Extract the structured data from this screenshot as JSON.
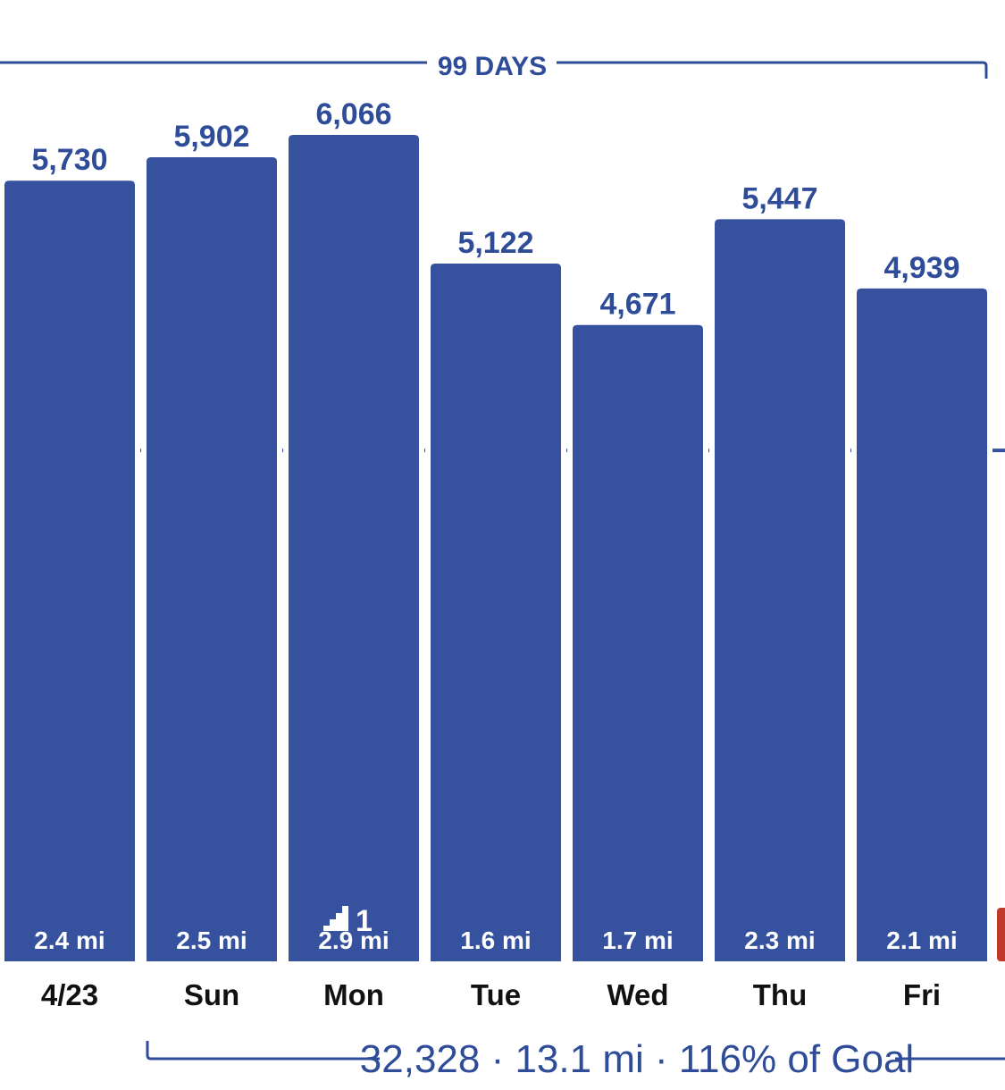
{
  "colors": {
    "bar": "#36529e",
    "accent": "#2f4c99",
    "goal_line": "#36529e",
    "day_label": "#111111",
    "next_bar": "#c0392b",
    "bar_text": "#ffffff"
  },
  "header": {
    "period_label": "99 DAYS"
  },
  "summary": {
    "text": "32,328 · 13.1 mi · 116% of Goal"
  },
  "chart_data": {
    "type": "bar",
    "categories": [
      "4/23",
      "Sun",
      "Mon",
      "Tue",
      "Wed",
      "Thu",
      "Fri"
    ],
    "values": [
      5730,
      5902,
      6066,
      5122,
      4671,
      5447,
      4939
    ],
    "value_labels": [
      "5,730",
      "5,902",
      "6,066",
      "5,122",
      "4,671",
      "5,447",
      "4,939"
    ],
    "distances": [
      "2.4 mi",
      "2.5 mi",
      "2.9 mi",
      "1.6 mi",
      "1.7 mi",
      "2.3 mi",
      "2.1 mi"
    ],
    "floors": [
      null,
      null,
      1,
      null,
      null,
      null,
      null
    ],
    "goal": 3750,
    "ylim": [
      0,
      6400
    ],
    "grid": false,
    "legend": "none",
    "title": "",
    "xlabel": "",
    "ylabel": ""
  }
}
